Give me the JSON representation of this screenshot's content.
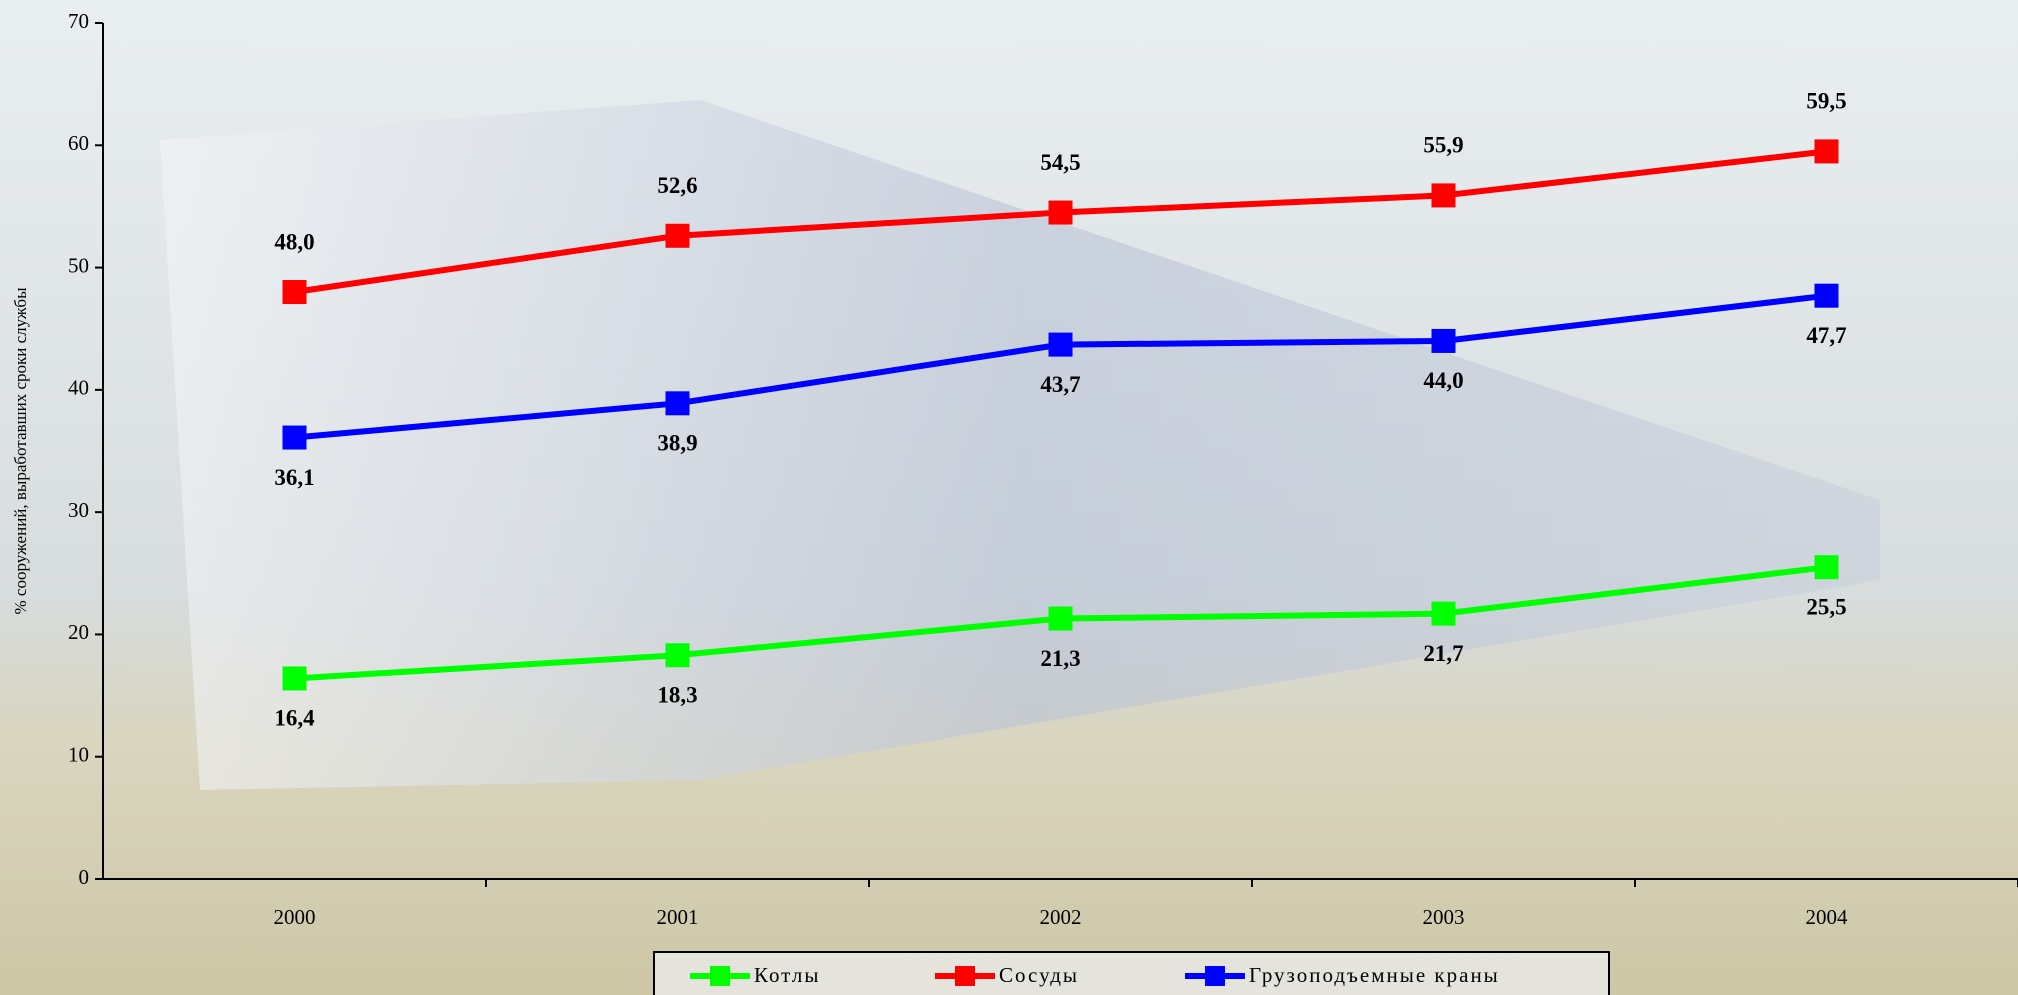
{
  "chart_data": {
    "type": "line",
    "y_axis_label": "% сооружений, выработавших сроки службы",
    "categories": [
      "2000",
      "2001",
      "2002",
      "2003",
      "2004"
    ],
    "series": [
      {
        "name": "Котлы",
        "color": "#00ff00",
        "values": [
          16.4,
          18.3,
          21.3,
          21.7,
          25.5
        ],
        "value_labels": [
          "16,4",
          "18,3",
          "21,3",
          "21,7",
          "25,5"
        ]
      },
      {
        "name": "Сосуды",
        "color": "#ff0000",
        "values": [
          48.0,
          52.6,
          54.5,
          55.9,
          59.5
        ],
        "value_labels": [
          "48,0",
          "52,6",
          "54,5",
          "55,9",
          "59,5"
        ]
      },
      {
        "name": "Грузоподъемные краны",
        "color": "#0000ff",
        "values": [
          36.1,
          38.9,
          43.7,
          44.0,
          47.7
        ],
        "value_labels": [
          "36,1",
          "38,9",
          "43,7",
          "44,0",
          "47,7"
        ]
      }
    ],
    "ylim": [
      0,
      70
    ],
    "yticks": [
      0,
      10,
      20,
      30,
      40,
      50,
      60,
      70
    ]
  }
}
